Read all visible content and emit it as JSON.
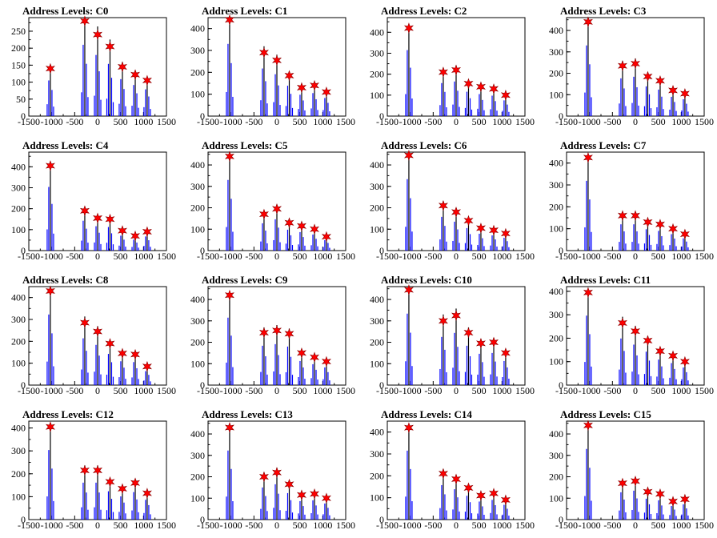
{
  "figure": {
    "colors": {
      "histogram": "#0000ff",
      "marker_fill": "#ff0000",
      "marker_stroke": "#8b0000",
      "axes": "#000000"
    }
  },
  "chart_data": [
    {
      "type": "histogram",
      "title": "Address Levels: C0",
      "xlim": [
        -1500,
        1500
      ],
      "ylim": [
        0,
        290
      ],
      "xticks": [
        "-1500",
        "-1000",
        "-500",
        "0",
        "500",
        "1000",
        "1500"
      ],
      "yticks": [
        "0",
        "50",
        "100",
        "150",
        "200",
        "250"
      ],
      "peaks": [
        {
          "x": -1030,
          "count": 140
        },
        {
          "x": -280,
          "count": 280
        },
        {
          "x": 0,
          "count": 240
        },
        {
          "x": 270,
          "count": 205
        },
        {
          "x": 540,
          "count": 145
        },
        {
          "x": 820,
          "count": 122
        },
        {
          "x": 1080,
          "count": 105
        }
      ]
    },
    {
      "type": "histogram",
      "title": "Address Levels: C1",
      "xlim": [
        -1500,
        1500
      ],
      "ylim": [
        0,
        450
      ],
      "xticks": [
        "-1500",
        "-1000",
        "-500",
        "0",
        "500",
        "1000",
        "1500"
      ],
      "yticks": [
        "0",
        "100",
        "200",
        "300",
        "400"
      ],
      "peaks": [
        {
          "x": -1030,
          "count": 440
        },
        {
          "x": -280,
          "count": 290
        },
        {
          "x": 0,
          "count": 255
        },
        {
          "x": 270,
          "count": 185
        },
        {
          "x": 540,
          "count": 130
        },
        {
          "x": 820,
          "count": 140
        },
        {
          "x": 1080,
          "count": 110
        }
      ]
    },
    {
      "type": "histogram",
      "title": "Address Levels: C2",
      "xlim": [
        -1500,
        1500
      ],
      "ylim": [
        0,
        470
      ],
      "xticks": [
        "-1500",
        "-1000",
        "-500",
        "0",
        "500",
        "1000",
        "1500"
      ],
      "yticks": [
        "0",
        "100",
        "200",
        "300",
        "400"
      ],
      "peaks": [
        {
          "x": -1030,
          "count": 420
        },
        {
          "x": -280,
          "count": 210
        },
        {
          "x": 0,
          "count": 220
        },
        {
          "x": 270,
          "count": 155
        },
        {
          "x": 540,
          "count": 140
        },
        {
          "x": 820,
          "count": 130
        },
        {
          "x": 1080,
          "count": 100
        }
      ]
    },
    {
      "type": "histogram",
      "title": "Address Levels: C3",
      "xlim": [
        -1500,
        1500
      ],
      "ylim": [
        0,
        460
      ],
      "xticks": [
        "-1500",
        "-1000",
        "-500",
        "0",
        "500",
        "1000",
        "1500"
      ],
      "yticks": [
        "0",
        "100",
        "200",
        "300",
        "400"
      ],
      "peaks": [
        {
          "x": -1030,
          "count": 440
        },
        {
          "x": -280,
          "count": 235
        },
        {
          "x": 0,
          "count": 245
        },
        {
          "x": 270,
          "count": 185
        },
        {
          "x": 540,
          "count": 165
        },
        {
          "x": 820,
          "count": 120
        },
        {
          "x": 1080,
          "count": 105
        }
      ]
    },
    {
      "type": "histogram",
      "title": "Address Levels: C4",
      "xlim": [
        -1500,
        1500
      ],
      "ylim": [
        0,
        470
      ],
      "xticks": [
        "-1500",
        "-1000",
        "-500",
        "0",
        "500",
        "1000",
        "1500"
      ],
      "yticks": [
        "0",
        "100",
        "200",
        "300",
        "400"
      ],
      "peaks": [
        {
          "x": -1030,
          "count": 405
        },
        {
          "x": -280,
          "count": 190
        },
        {
          "x": 0,
          "count": 155
        },
        {
          "x": 270,
          "count": 150
        },
        {
          "x": 540,
          "count": 95
        },
        {
          "x": 820,
          "count": 70
        },
        {
          "x": 1080,
          "count": 90
        }
      ]
    },
    {
      "type": "histogram",
      "title": "Address Levels: C5",
      "xlim": [
        -1500,
        1500
      ],
      "ylim": [
        0,
        460
      ],
      "xticks": [
        "-1500",
        "-1000",
        "-500",
        "0",
        "500",
        "1000",
        "1500"
      ],
      "yticks": [
        "0",
        "100",
        "200",
        "300",
        "400"
      ],
      "peaks": [
        {
          "x": -1030,
          "count": 440
        },
        {
          "x": -280,
          "count": 170
        },
        {
          "x": 0,
          "count": 195
        },
        {
          "x": 270,
          "count": 130
        },
        {
          "x": 540,
          "count": 115
        },
        {
          "x": 820,
          "count": 100
        },
        {
          "x": 1080,
          "count": 65
        }
      ]
    },
    {
      "type": "histogram",
      "title": "Address Levels: C6",
      "xlim": [
        -1500,
        1500
      ],
      "ylim": [
        0,
        460
      ],
      "xticks": [
        "-1500",
        "-1000",
        "-500",
        "0",
        "500",
        "1000",
        "1500"
      ],
      "yticks": [
        "0",
        "100",
        "200",
        "300",
        "400"
      ],
      "peaks": [
        {
          "x": -1030,
          "count": 445
        },
        {
          "x": -280,
          "count": 210
        },
        {
          "x": 0,
          "count": 180
        },
        {
          "x": 270,
          "count": 140
        },
        {
          "x": 540,
          "count": 105
        },
        {
          "x": 820,
          "count": 95
        },
        {
          "x": 1080,
          "count": 80
        }
      ]
    },
    {
      "type": "histogram",
      "title": "Address Levels: C7",
      "xlim": [
        -1500,
        1500
      ],
      "ylim": [
        0,
        450
      ],
      "xticks": [
        "-1500",
        "-1000",
        "-500",
        "0",
        "500",
        "1000",
        "1500"
      ],
      "yticks": [
        "0",
        "100",
        "200",
        "300",
        "400"
      ],
      "peaks": [
        {
          "x": -1030,
          "count": 425
        },
        {
          "x": -280,
          "count": 160
        },
        {
          "x": 0,
          "count": 160
        },
        {
          "x": 270,
          "count": 130
        },
        {
          "x": 540,
          "count": 120
        },
        {
          "x": 820,
          "count": 100
        },
        {
          "x": 1080,
          "count": 75
        }
      ]
    },
    {
      "type": "histogram",
      "title": "Address Levels: C8",
      "xlim": [
        -1500,
        1500
      ],
      "ylim": [
        0,
        450
      ],
      "xticks": [
        "-1500",
        "-1000",
        "-500",
        "0",
        "500",
        "1000",
        "1500"
      ],
      "yticks": [
        "0",
        "100",
        "200",
        "300",
        "400"
      ],
      "peaks": [
        {
          "x": -1030,
          "count": 430
        },
        {
          "x": -280,
          "count": 285
        },
        {
          "x": 0,
          "count": 245
        },
        {
          "x": 270,
          "count": 190
        },
        {
          "x": 540,
          "count": 145
        },
        {
          "x": 820,
          "count": 140
        },
        {
          "x": 1080,
          "count": 85
        }
      ]
    },
    {
      "type": "histogram",
      "title": "Address Levels: C9",
      "xlim": [
        -1500,
        1500
      ],
      "ylim": [
        0,
        460
      ],
      "xticks": [
        "-1500",
        "-1000",
        "-500",
        "0",
        "500",
        "1000",
        "1500"
      ],
      "yticks": [
        "0",
        "100",
        "200",
        "300",
        "400"
      ],
      "peaks": [
        {
          "x": -1030,
          "count": 420
        },
        {
          "x": -280,
          "count": 245
        },
        {
          "x": 0,
          "count": 255
        },
        {
          "x": 270,
          "count": 240
        },
        {
          "x": 540,
          "count": 150
        },
        {
          "x": 820,
          "count": 130
        },
        {
          "x": 1080,
          "count": 110
        }
      ]
    },
    {
      "type": "histogram",
      "title": "Address Levels: C10",
      "xlim": [
        -1500,
        1500
      ],
      "ylim": [
        0,
        460
      ],
      "xticks": [
        "-1500",
        "-1000",
        "-500",
        "0",
        "500",
        "1000",
        "1500"
      ],
      "yticks": [
        "0",
        "100",
        "200",
        "300",
        "400"
      ],
      "peaks": [
        {
          "x": -1030,
          "count": 445
        },
        {
          "x": -280,
          "count": 300
        },
        {
          "x": 0,
          "count": 325
        },
        {
          "x": 270,
          "count": 245
        },
        {
          "x": 540,
          "count": 195
        },
        {
          "x": 820,
          "count": 200
        },
        {
          "x": 1080,
          "count": 150
        }
      ]
    },
    {
      "type": "histogram",
      "title": "Address Levels: C11",
      "xlim": [
        -1500,
        1500
      ],
      "ylim": [
        0,
        420
      ],
      "xticks": [
        "-1500",
        "-1000",
        "-500",
        "0",
        "500",
        "1000",
        "1500"
      ],
      "yticks": [
        "0",
        "100",
        "200",
        "300",
        "400"
      ],
      "peaks": [
        {
          "x": -1030,
          "count": 395
        },
        {
          "x": -280,
          "count": 265
        },
        {
          "x": 0,
          "count": 230
        },
        {
          "x": 270,
          "count": 190
        },
        {
          "x": 540,
          "count": 145
        },
        {
          "x": 820,
          "count": 125
        },
        {
          "x": 1080,
          "count": 100
        }
      ]
    },
    {
      "type": "histogram",
      "title": "Address Levels: C12",
      "xlim": [
        -1500,
        1500
      ],
      "ylim": [
        0,
        430
      ],
      "xticks": [
        "-1500",
        "-1000",
        "-500",
        "0",
        "500",
        "1000",
        "1500"
      ],
      "yticks": [
        "0",
        "100",
        "200",
        "300",
        "400"
      ],
      "peaks": [
        {
          "x": -1030,
          "count": 405
        },
        {
          "x": -280,
          "count": 215
        },
        {
          "x": 0,
          "count": 215
        },
        {
          "x": 270,
          "count": 165
        },
        {
          "x": 540,
          "count": 135
        },
        {
          "x": 820,
          "count": 160
        },
        {
          "x": 1080,
          "count": 115
        }
      ]
    },
    {
      "type": "histogram",
      "title": "Address Levels: C13",
      "xlim": [
        -1500,
        1500
      ],
      "ylim": [
        0,
        460
      ],
      "xticks": [
        "-1500",
        "-1000",
        "-500",
        "0",
        "500",
        "1000",
        "1500"
      ],
      "yticks": [
        "0",
        "100",
        "200",
        "300",
        "400"
      ],
      "peaks": [
        {
          "x": -1030,
          "count": 430
        },
        {
          "x": -280,
          "count": 200
        },
        {
          "x": 0,
          "count": 220
        },
        {
          "x": 270,
          "count": 165
        },
        {
          "x": 540,
          "count": 115
        },
        {
          "x": 820,
          "count": 120
        },
        {
          "x": 1080,
          "count": 100
        }
      ]
    },
    {
      "type": "histogram",
      "title": "Address Levels: C14",
      "xlim": [
        -1500,
        1500
      ],
      "ylim": [
        0,
        450
      ],
      "xticks": [
        "-1500",
        "-1000",
        "-500",
        "0",
        "500",
        "1000",
        "1500"
      ],
      "yticks": [
        "0",
        "100",
        "200",
        "300",
        "400"
      ],
      "peaks": [
        {
          "x": -1030,
          "count": 420
        },
        {
          "x": -280,
          "count": 210
        },
        {
          "x": 0,
          "count": 185
        },
        {
          "x": 270,
          "count": 145
        },
        {
          "x": 540,
          "count": 110
        },
        {
          "x": 820,
          "count": 120
        },
        {
          "x": 1080,
          "count": 90
        }
      ]
    },
    {
      "type": "histogram",
      "title": "Address Levels: C15",
      "xlim": [
        -1500,
        1500
      ],
      "ylim": [
        0,
        460
      ],
      "xticks": [
        "-1500",
        "-1000",
        "-500",
        "0",
        "500",
        "1000",
        "1500"
      ],
      "yticks": [
        "0",
        "100",
        "200",
        "300",
        "400"
      ],
      "peaks": [
        {
          "x": -1030,
          "count": 440
        },
        {
          "x": -280,
          "count": 170
        },
        {
          "x": 0,
          "count": 180
        },
        {
          "x": 270,
          "count": 130
        },
        {
          "x": 540,
          "count": 120
        },
        {
          "x": 820,
          "count": 85
        },
        {
          "x": 1080,
          "count": 95
        }
      ]
    }
  ]
}
